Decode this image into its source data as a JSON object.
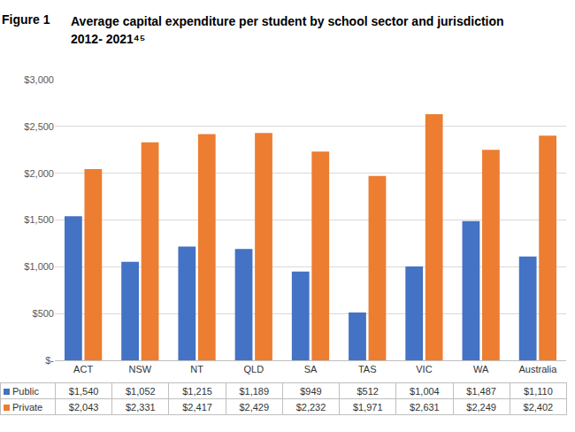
{
  "chart_data": {
    "type": "bar",
    "label": "Figure 1",
    "title": [
      "Average capital expenditure per student by school sector and jurisdiction",
      "2012- 2021⁴⁵"
    ],
    "categories": [
      "ACT",
      "NSW",
      "NT",
      "QLD",
      "SA",
      "TAS",
      "VIC",
      "WA",
      "Australia"
    ],
    "series": [
      {
        "name": "Public",
        "color": "#4472c4",
        "values": [
          1540,
          1052,
          1215,
          1189,
          949,
          512,
          1004,
          1487,
          1110
        ],
        "value_labels": [
          "$1,540",
          "$1,052",
          "$1,215",
          "$1,189",
          "$949",
          "$512",
          "$1,004",
          "$1,487",
          "$1,110"
        ]
      },
      {
        "name": "Private",
        "color": "#ed7d31",
        "values": [
          2043,
          2331,
          2417,
          2429,
          2232,
          1971,
          2631,
          2249,
          2402
        ],
        "value_labels": [
          "$2,043",
          "$2,331",
          "$2,417",
          "$2,429",
          "$2,232",
          "$1,971",
          "$2,631",
          "$2,249",
          "$2,402"
        ]
      }
    ],
    "ylim": [
      0,
      3000
    ],
    "yticks": [
      {
        "value": 0,
        "label": "$-"
      },
      {
        "value": 500,
        "label": "$500"
      },
      {
        "value": 1000,
        "label": "$1,000"
      },
      {
        "value": 1500,
        "label": "$1,500"
      },
      {
        "value": 2000,
        "label": "$2,000"
      },
      {
        "value": 2500,
        "label": "$2,500"
      },
      {
        "value": 3000,
        "label": "$3,000"
      }
    ],
    "grid": true
  }
}
